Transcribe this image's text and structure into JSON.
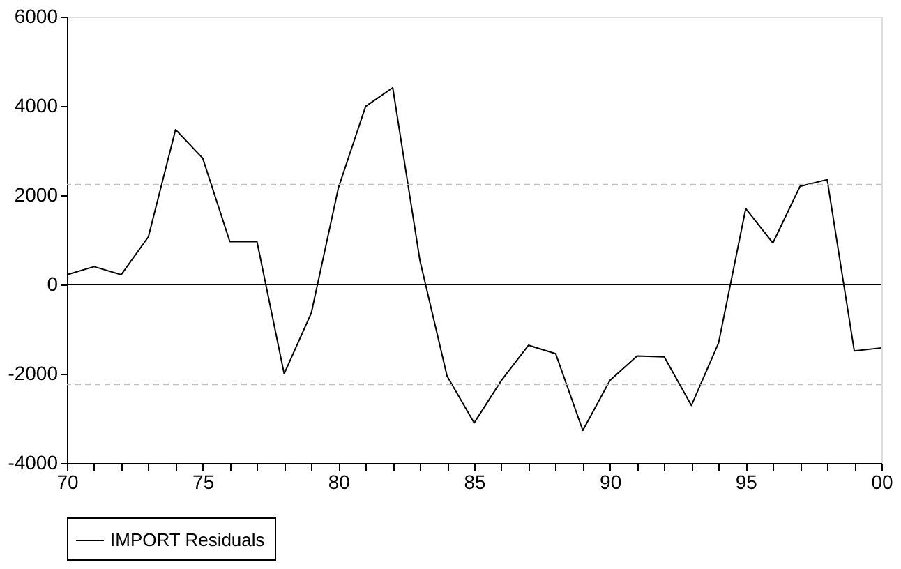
{
  "chart_data": {
    "type": "line",
    "x": [
      1970,
      1971,
      1972,
      1973,
      1974,
      1975,
      1976,
      1977,
      1978,
      1979,
      1980,
      1981,
      1982,
      1983,
      1984,
      1985,
      1986,
      1987,
      1988,
      1989,
      1990,
      1991,
      1992,
      1993,
      1994,
      1995,
      1996,
      1997,
      1998,
      1999,
      2000
    ],
    "series": [
      {
        "name": "IMPORT Residuals",
        "color": "#000000",
        "values": [
          220,
          400,
          220,
          1070,
          3470,
          2830,
          960,
          960,
          -2000,
          -640,
          2170,
          3990,
          4410,
          540,
          -2050,
          -3100,
          -2150,
          -1360,
          -1550,
          -3270,
          -2150,
          -1600,
          -1620,
          -2710,
          -1310,
          1700,
          930,
          2200,
          2350,
          -1490,
          -1420
        ]
      }
    ],
    "xlim": [
      1970,
      2000
    ],
    "xticks": [
      {
        "value": 1970,
        "label": "70"
      },
      {
        "value": 1971,
        "label": null
      },
      {
        "value": 1972,
        "label": null
      },
      {
        "value": 1973,
        "label": null
      },
      {
        "value": 1974,
        "label": null
      },
      {
        "value": 1975,
        "label": "75"
      },
      {
        "value": 1976,
        "label": null
      },
      {
        "value": 1977,
        "label": null
      },
      {
        "value": 1978,
        "label": null
      },
      {
        "value": 1979,
        "label": null
      },
      {
        "value": 1980,
        "label": "80"
      },
      {
        "value": 1981,
        "label": null
      },
      {
        "value": 1982,
        "label": null
      },
      {
        "value": 1983,
        "label": null
      },
      {
        "value": 1984,
        "label": null
      },
      {
        "value": 1985,
        "label": "85"
      },
      {
        "value": 1986,
        "label": null
      },
      {
        "value": 1987,
        "label": null
      },
      {
        "value": 1988,
        "label": null
      },
      {
        "value": 1989,
        "label": null
      },
      {
        "value": 1990,
        "label": "90"
      },
      {
        "value": 1991,
        "label": null
      },
      {
        "value": 1992,
        "label": null
      },
      {
        "value": 1993,
        "label": null
      },
      {
        "value": 1994,
        "label": null
      },
      {
        "value": 1995,
        "label": "95"
      },
      {
        "value": 1996,
        "label": null
      },
      {
        "value": 1997,
        "label": null
      },
      {
        "value": 1998,
        "label": null
      },
      {
        "value": 1999,
        "label": null
      },
      {
        "value": 2000,
        "label": "00"
      }
    ],
    "ylim": [
      -4000,
      6000
    ],
    "yticks": [
      -4000,
      -2000,
      0,
      2000,
      4000,
      6000
    ],
    "ref_lines": [
      {
        "axis": "y",
        "value": 0,
        "color": "#000000",
        "line_style": "solid"
      },
      {
        "axis": "y",
        "value": 2240,
        "color": "#c0c0c0",
        "line_style": "dashed"
      },
      {
        "axis": "y",
        "value": -2240,
        "color": "#c0c0c0",
        "line_style": "dashed"
      }
    ],
    "grid": false,
    "legend": "bottom",
    "line_style": "solid",
    "marker": "none"
  }
}
